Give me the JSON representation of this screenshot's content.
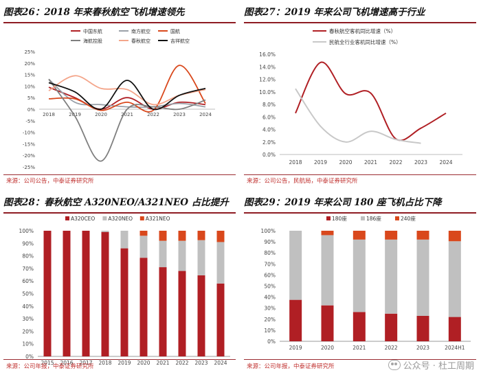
{
  "chart_data": [
    {
      "type": "line",
      "title": "图表26：2018 年来春秋航空飞机增速领先",
      "source": "来源：公司公告，中泰证券研究所",
      "categories": [
        "2018",
        "2019",
        "2020",
        "2021",
        "2022",
        "2023",
        "2024"
      ],
      "ylim": [
        -0.25,
        0.25
      ],
      "yticks": [
        "25%",
        "20%",
        "15%",
        "10%",
        "5%",
        "0%",
        "-5%",
        "-10%",
        "-15%",
        "-20%",
        "-25%"
      ],
      "series": [
        {
          "name": "中国东航",
          "color": "#b01f24",
          "values": [
            0.095,
            0.05,
            0.0,
            0.05,
            0.0,
            0.03,
            0.02
          ]
        },
        {
          "name": "南方航空",
          "color": "#9aa0a8",
          "values": [
            0.13,
            0.03,
            0.02,
            0.01,
            0.01,
            0.025,
            0.01
          ]
        },
        {
          "name": "国航",
          "color": "#d9481c",
          "values": [
            0.045,
            0.045,
            -0.005,
            0.03,
            -0.005,
            0.19,
            0.025
          ]
        },
        {
          "name": "海航控股",
          "color": "#7f7f7f",
          "values": [
            0.13,
            -0.03,
            -0.225,
            0.0,
            0.01,
            0.0,
            0.04
          ]
        },
        {
          "name": "春秋航空",
          "color": "#f4a58a",
          "values": [
            0.08,
            0.145,
            0.09,
            0.085,
            0.02,
            0.06,
            0.085
          ]
        },
        {
          "name": "吉祥航空",
          "color": "#111111",
          "values": [
            0.115,
            0.075,
            0.0,
            0.125,
            0.0,
            0.06,
            0.09
          ]
        }
      ]
    },
    {
      "type": "line",
      "title": "图表27：2019 年来公司飞机增速高于行业",
      "source": "来源：公司公告，民航局，中泰证券研究所",
      "categories": [
        "2018",
        "2019",
        "2020",
        "2021",
        "2022",
        "2023",
        "2024"
      ],
      "ylim": [
        0,
        0.16
      ],
      "yticks": [
        "16.0%",
        "14.0%",
        "12.0%",
        "10.0%",
        "8.0%",
        "6.0%",
        "4.0%",
        "2.0%",
        "0.0%"
      ],
      "series": [
        {
          "name": "春秋航空客机同比增速（%）",
          "color": "#b01f24",
          "values": [
            0.066,
            0.147,
            0.097,
            0.098,
            0.025,
            0.042,
            0.066
          ]
        },
        {
          "name": "民航全行业客机同比增速（%）",
          "color": "#c8c8c8",
          "values": [
            0.105,
            0.045,
            0.02,
            0.037,
            0.024,
            0.018,
            null
          ]
        }
      ]
    },
    {
      "type": "bar",
      "stacked": true,
      "title": "图表28：春秋航空 A320NEO/A321NEO 占比提升",
      "source": "来源：公司年报，中泰证券研究所",
      "categories": [
        "2015",
        "2016",
        "2017",
        "2018",
        "2019",
        "2020",
        "2021",
        "2022",
        "2023",
        "2024"
      ],
      "ylim": [
        0,
        1
      ],
      "yticks": [
        "100%",
        "90%",
        "80%",
        "70%",
        "60%",
        "50%",
        "40%",
        "30%",
        "20%",
        "10%",
        "0%"
      ],
      "series": [
        {
          "name": "A320CEO",
          "color": "#b01f24",
          "values": [
            1.0,
            1.0,
            1.0,
            0.99,
            0.86,
            0.785,
            0.71,
            0.68,
            0.645,
            0.58
          ]
        },
        {
          "name": "A320NEO",
          "color": "#c0c0c0",
          "values": [
            0.0,
            0.0,
            0.0,
            0.01,
            0.14,
            0.175,
            0.21,
            0.24,
            0.28,
            0.33
          ]
        },
        {
          "name": "A321NEO",
          "color": "#d9481c",
          "values": [
            0.0,
            0.0,
            0.0,
            0.0,
            0.0,
            0.04,
            0.08,
            0.08,
            0.075,
            0.09
          ]
        }
      ]
    },
    {
      "type": "bar",
      "stacked": true,
      "title": "图表29：2019 年来公司 180 座飞机占比下降",
      "source": "来源：公司年报，中泰证券研究所",
      "categories": [
        "2019",
        "2020",
        "2021",
        "2022",
        "2023",
        "2024H1"
      ],
      "ylim": [
        0,
        1
      ],
      "yticks": [
        "100%",
        "90%",
        "80%",
        "70%",
        "60%",
        "50%",
        "40%",
        "30%",
        "20%",
        "10%",
        "0%"
      ],
      "series": [
        {
          "name": "180座",
          "color": "#b01f24",
          "values": [
            0.375,
            0.325,
            0.265,
            0.25,
            0.23,
            0.22
          ]
        },
        {
          "name": "186座",
          "color": "#c0c0c0",
          "values": [
            0.625,
            0.635,
            0.655,
            0.67,
            0.69,
            0.685
          ]
        },
        {
          "name": "240座",
          "color": "#d9481c",
          "values": [
            0.0,
            0.04,
            0.08,
            0.08,
            0.08,
            0.095
          ]
        }
      ]
    }
  ],
  "watermark": "公众号 · 杜工周期"
}
